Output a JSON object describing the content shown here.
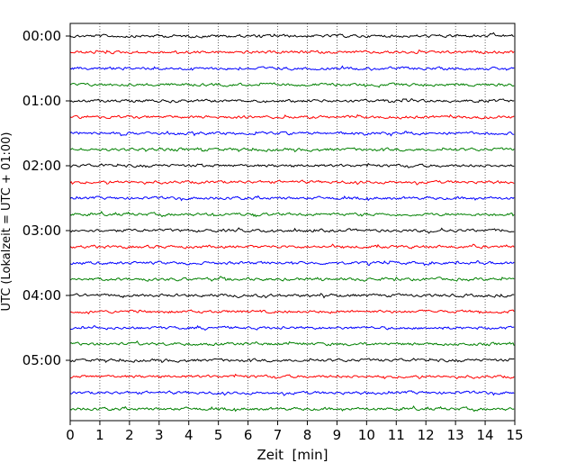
{
  "chart_data": {
    "type": "line",
    "title": "",
    "xlabel": "Zeit  [min]",
    "ylabel": "UTC (Lokalzeit = UTC + 01:00)",
    "xlim": [
      0,
      15
    ],
    "x_ticks": [
      "0",
      "1",
      "2",
      "3",
      "4",
      "5",
      "6",
      "7",
      "8",
      "9",
      "10",
      "11",
      "12",
      "13",
      "14",
      "15"
    ],
    "y_ticks": [
      "00:00",
      "01:00",
      "02:00",
      "03:00",
      "04:00",
      "05:00"
    ],
    "grid": "vertical dotted lines at each minute",
    "trace_interval_min": 15,
    "trace_count": 24,
    "trace_colors": [
      "#000000",
      "#ff0000",
      "#0000ff",
      "#008000"
    ],
    "trace_start_times": [
      "00:00",
      "00:15",
      "00:30",
      "00:45",
      "01:00",
      "01:15",
      "01:30",
      "01:45",
      "02:00",
      "02:15",
      "02:30",
      "02:45",
      "03:00",
      "03:15",
      "03:30",
      "03:45",
      "04:00",
      "04:15",
      "04:30",
      "04:45",
      "05:00",
      "05:15",
      "05:30",
      "05:45"
    ]
  }
}
